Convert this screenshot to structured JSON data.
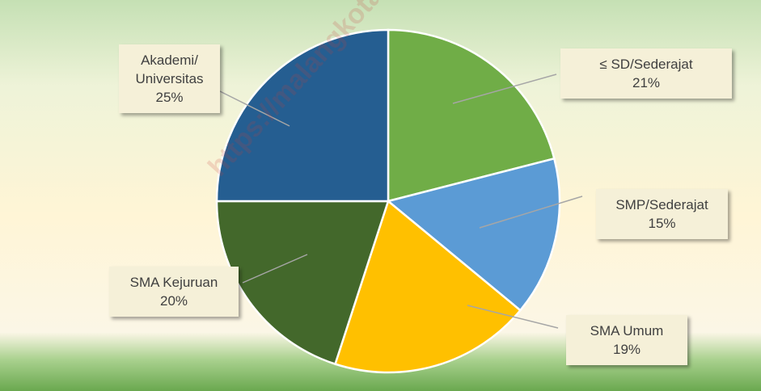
{
  "chart_data": {
    "type": "pie",
    "categories": [
      "≤ SD/Sederajat",
      "SMP/Sederajat",
      "SMA Umum",
      "SMA Kejuruan",
      "Akademi/ Universitas"
    ],
    "values": [
      21,
      15,
      19,
      20,
      25
    ],
    "value_labels": [
      "21%",
      "15%",
      "19%",
      "20%",
      "25%"
    ],
    "colors": [
      "#70ad47",
      "#5b9bd5",
      "#ffc000",
      "#43682b",
      "#255e91"
    ],
    "watermark": "https://malangkota.bps.g"
  }
}
